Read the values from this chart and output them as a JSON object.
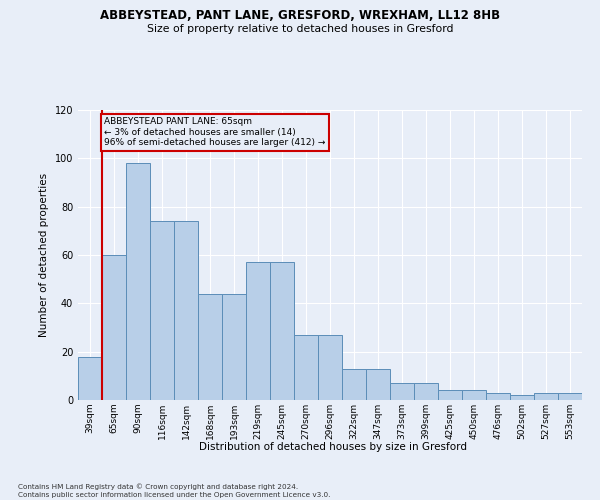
{
  "title1": "ABBEYSTEAD, PANT LANE, GRESFORD, WREXHAM, LL12 8HB",
  "title2": "Size of property relative to detached houses in Gresford",
  "xlabel": "Distribution of detached houses by size in Gresford",
  "ylabel": "Number of detached properties",
  "footnote": "Contains HM Land Registry data © Crown copyright and database right 2024.\nContains public sector information licensed under the Open Government Licence v3.0.",
  "categories": [
    "39sqm",
    "65sqm",
    "90sqm",
    "116sqm",
    "142sqm",
    "168sqm",
    "193sqm",
    "219sqm",
    "245sqm",
    "270sqm",
    "296sqm",
    "322sqm",
    "347sqm",
    "373sqm",
    "399sqm",
    "425sqm",
    "450sqm",
    "476sqm",
    "502sqm",
    "527sqm",
    "553sqm"
  ],
  "bar_values": [
    18,
    60,
    98,
    74,
    74,
    44,
    44,
    57,
    57,
    27,
    27,
    13,
    13,
    7,
    7,
    4,
    4,
    3,
    2,
    3,
    3
  ],
  "bar_color": "#b8cfe8",
  "bar_edge_color": "#5b8db8",
  "highlight_color": "#cc0000",
  "annotation_text": "ABBEYSTEAD PANT LANE: 65sqm\n← 3% of detached houses are smaller (14)\n96% of semi-detached houses are larger (412) →",
  "ylim": [
    0,
    120
  ],
  "yticks": [
    0,
    20,
    40,
    60,
    80,
    100,
    120
  ],
  "bg_color": "#e8eef8",
  "grid_color": "#ffffff"
}
